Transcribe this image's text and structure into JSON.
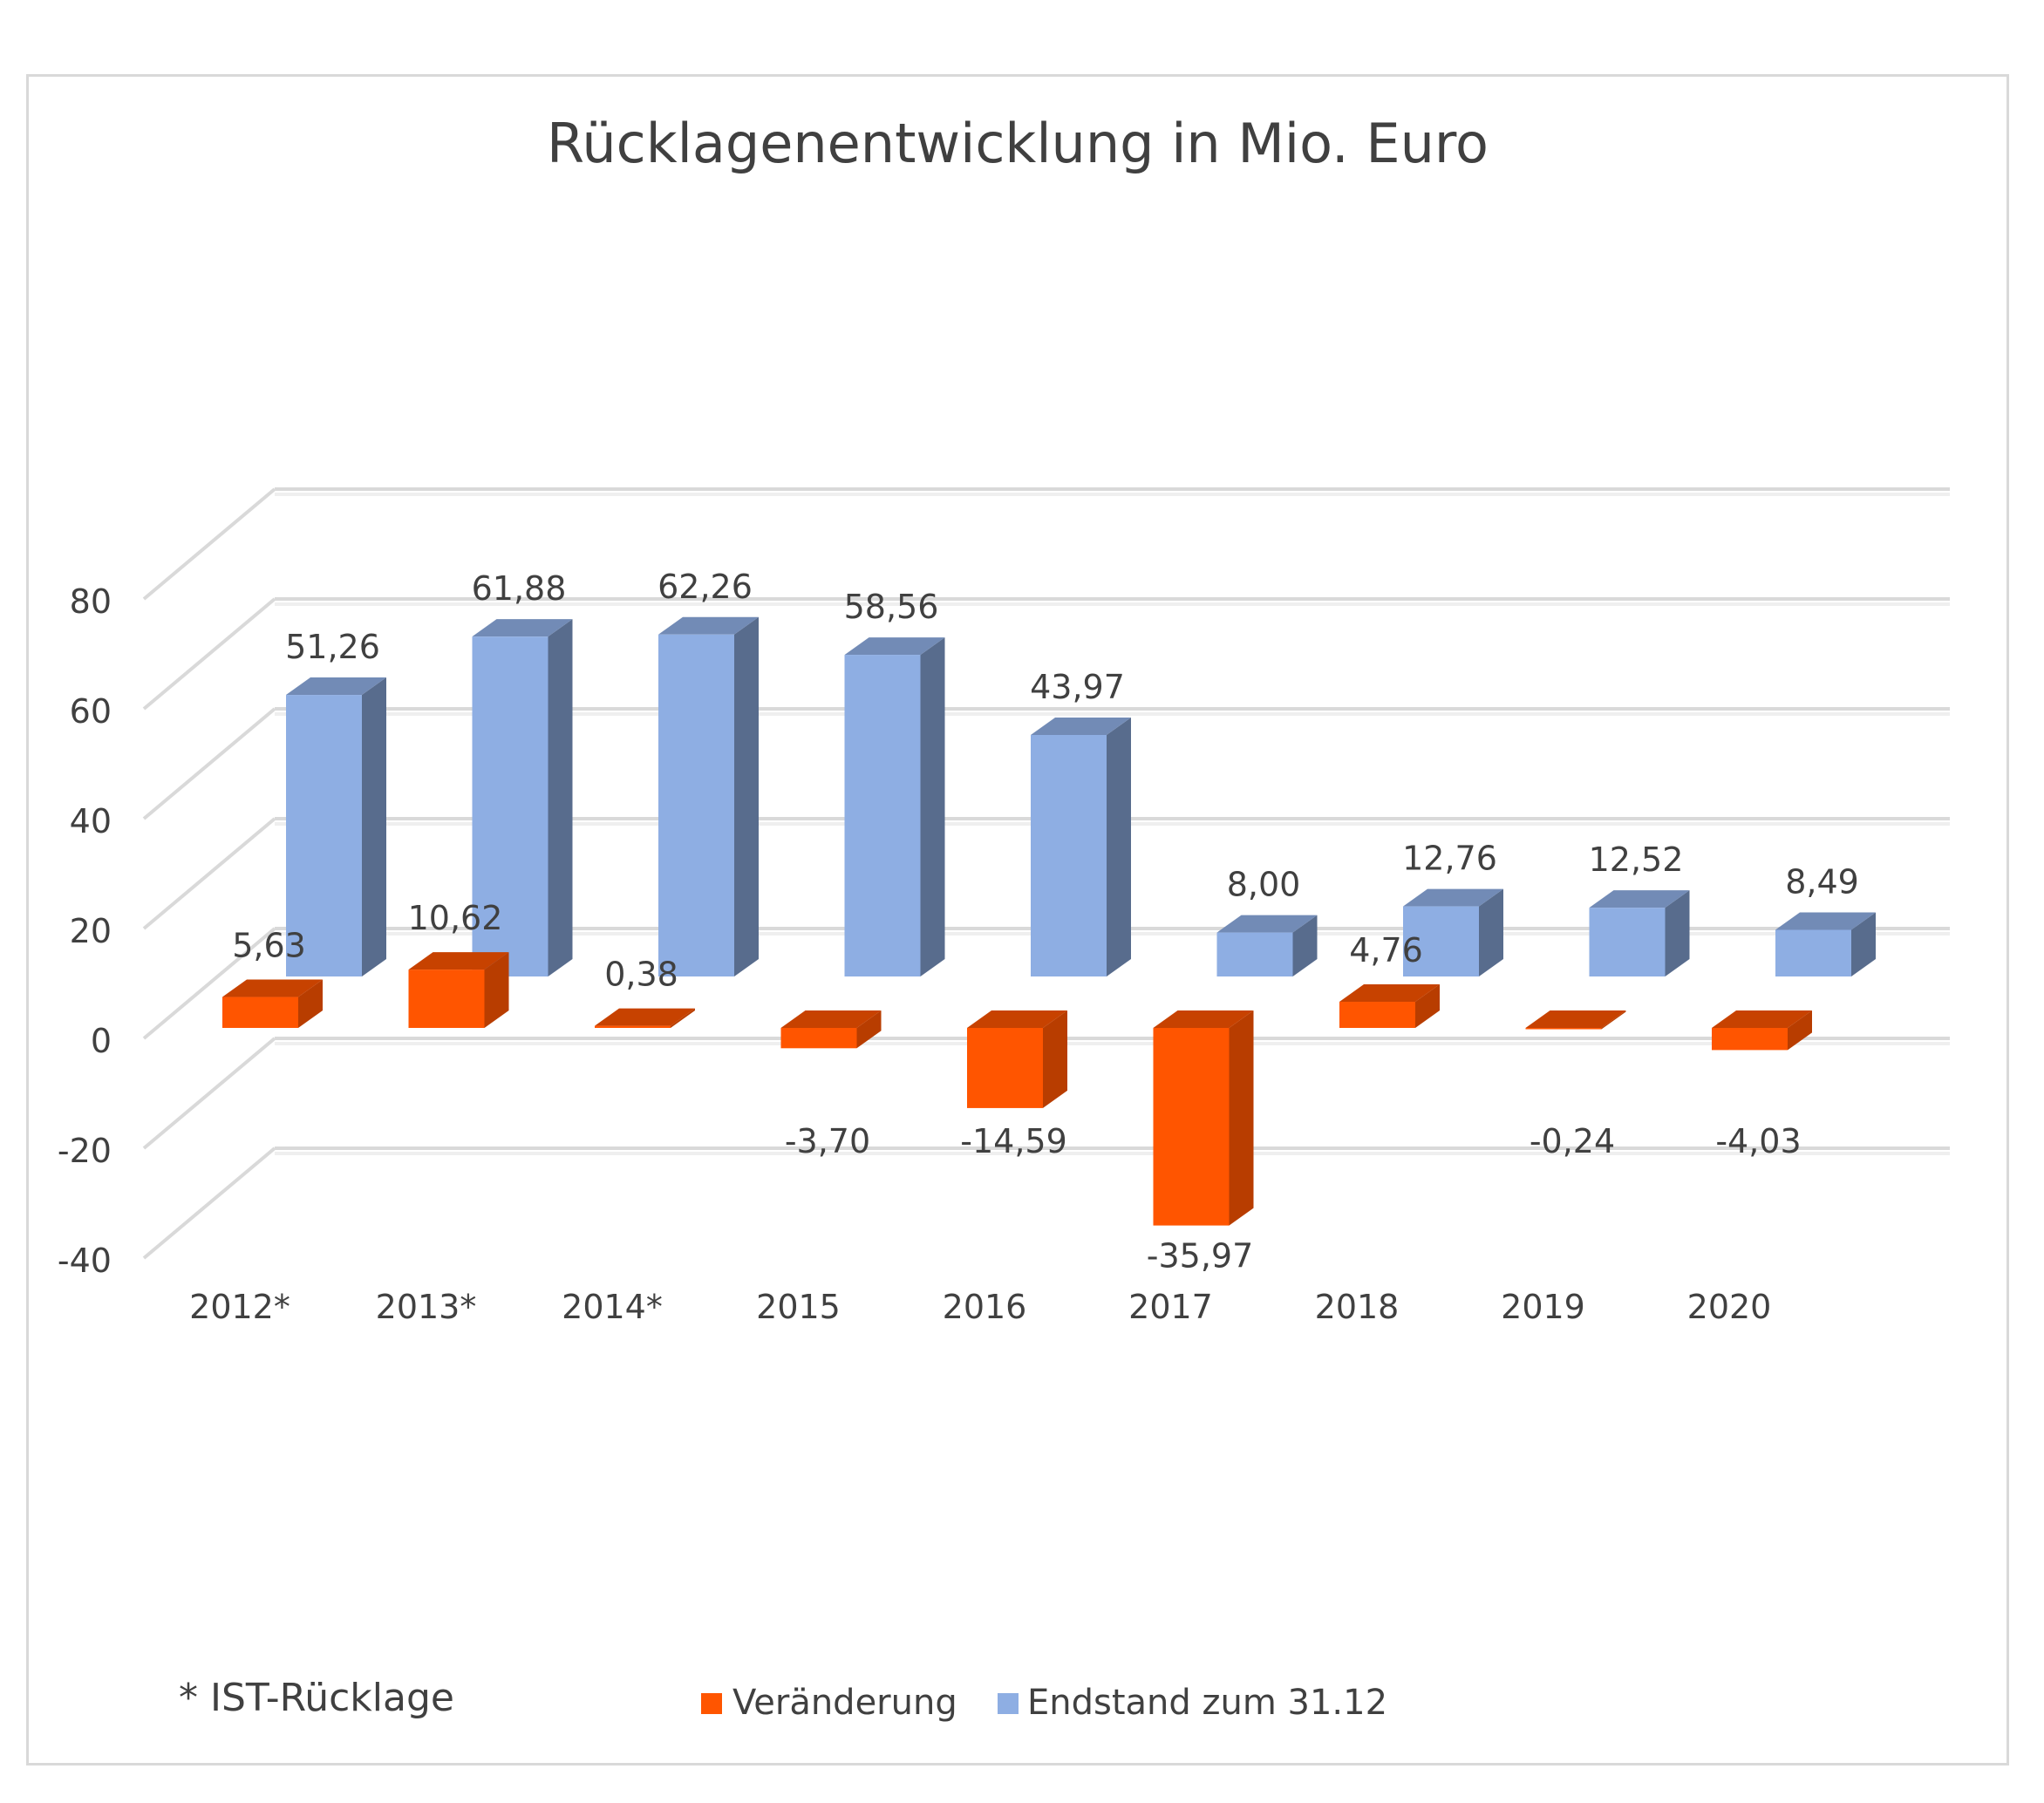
{
  "chart_data": {
    "type": "bar",
    "title": "Rücklagenentwicklung in Mio. Euro",
    "categories": [
      "2012*",
      "2013*",
      "2014*",
      "2015",
      "2016",
      "2017",
      "2018",
      "2019",
      "2020"
    ],
    "series": [
      {
        "name": "Veränderung",
        "color": "#ff5500",
        "values": [
          5.63,
          10.62,
          0.38,
          -3.7,
          -14.59,
          -35.97,
          4.76,
          -0.24,
          -4.03
        ],
        "labels": [
          "5,63",
          "10,62",
          "0,38",
          "-3,70",
          "-14,59",
          "-35,97",
          "4,76",
          "-0,24",
          "-4,03"
        ]
      },
      {
        "name": "Endstand zum 31.12",
        "color": "#8eaee3",
        "values": [
          51.26,
          61.88,
          62.26,
          58.56,
          43.97,
          8.0,
          12.76,
          12.52,
          8.49
        ],
        "labels": [
          "51,26",
          "61,88",
          "62,26",
          "58,56",
          "43,97",
          "8,00",
          "12,76",
          "12,52",
          "8,49"
        ]
      }
    ],
    "yticks": [
      "80",
      "60",
      "40",
      "20",
      "0",
      "-20",
      "-40"
    ],
    "ylim": [
      -40,
      80
    ],
    "grid": true,
    "legend_position": "bottom",
    "three_d": true
  },
  "footnote": "* IST-Rücklage"
}
